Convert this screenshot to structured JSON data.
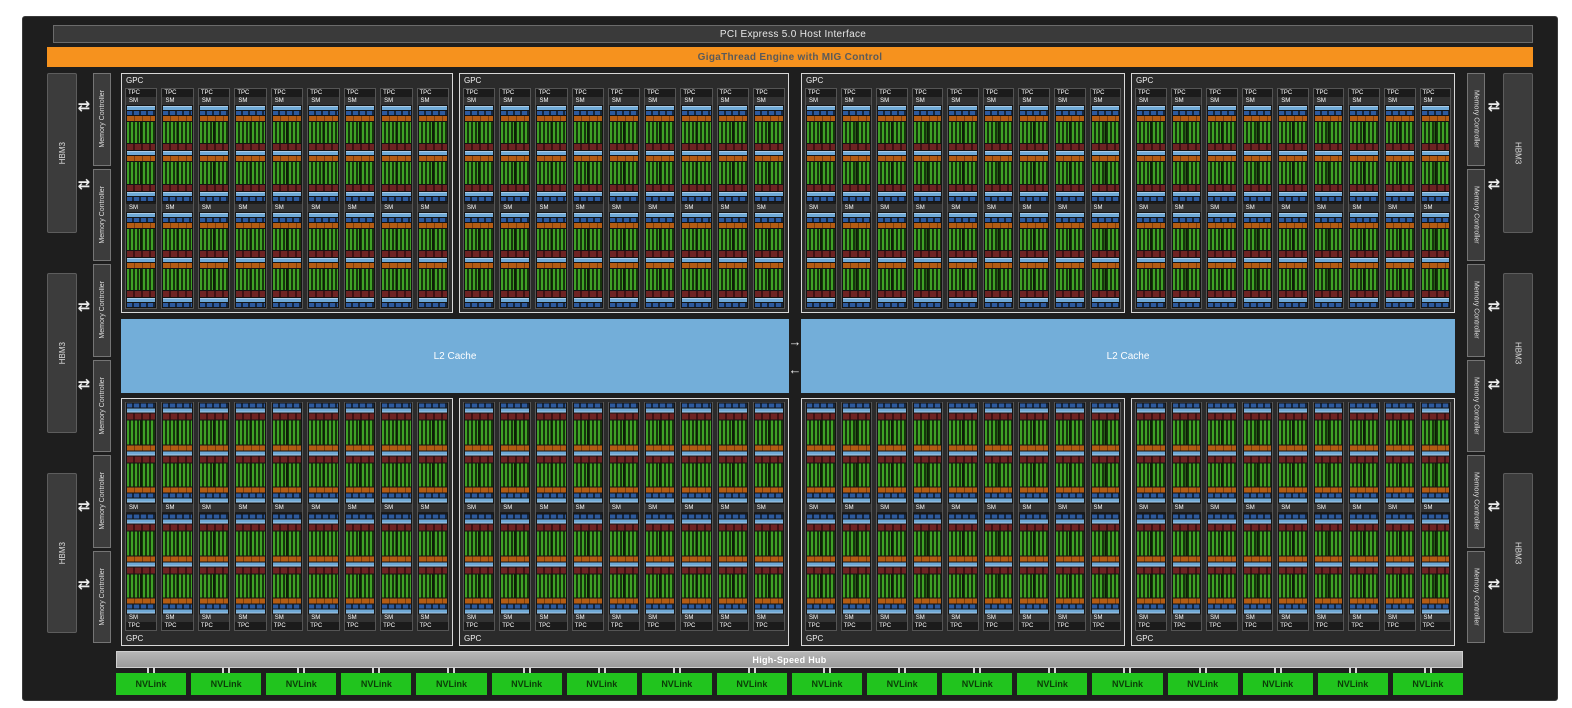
{
  "title_bars": {
    "pcie": "PCI Express 5.0 Host Interface",
    "gigathread": "GigaThread Engine with MIG Control"
  },
  "labels": {
    "gpc": "GPC",
    "tpc": "TPC",
    "sm": "SM",
    "l2": "L2 Cache",
    "hub": "High-Speed Hub",
    "nvlink": "NVLink",
    "hbm": "HBM3",
    "mc": "Memory Controller"
  },
  "counts": {
    "gpcs": 8,
    "tpcs_per_gpc": 9,
    "sms_per_tpc": 2,
    "nvlinks": 18,
    "hbm_stacks_per_side": 3,
    "memory_controllers_per_side": 6,
    "l2_partitions": 2
  },
  "icons": {
    "bidirectional_arrow": "⇄",
    "arrow_right": "→",
    "arrow_left": "←"
  },
  "colors": {
    "gigathread_orange": "#F6921E",
    "l2_blue": "#73AED9",
    "nvlink_green": "#21C41E",
    "sm_green": "#3FA226",
    "sm_orange": "#B45C13",
    "sm_maroon": "#6E2323",
    "sm_blue_light": "#6FA9D6",
    "sm_blue_dark": "#2D5A9E",
    "hub_gray": "#A2A2A2",
    "chip_bg": "#1E1E1E"
  }
}
